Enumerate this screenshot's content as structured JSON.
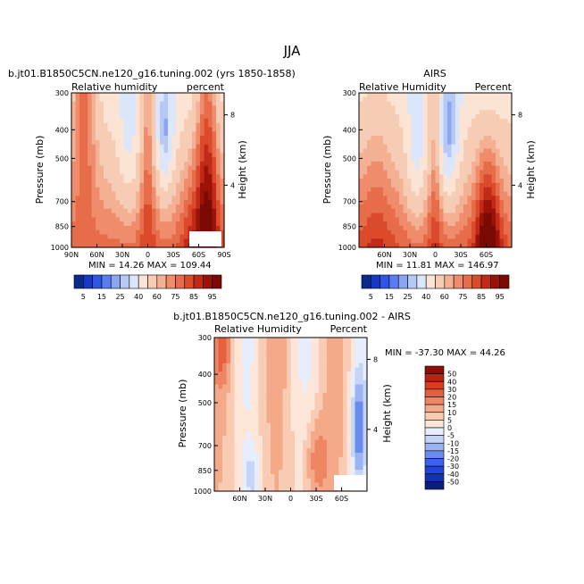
{
  "figure": {
    "title": "JJA"
  },
  "colors": {
    "rh_scale": [
      "#0a2a8c",
      "#1538c8",
      "#2f55e6",
      "#5a7cf0",
      "#8aa6f2",
      "#b6c9f5",
      "#dbe6fb",
      "#fbe4d4",
      "#f7ccb4",
      "#f3b093",
      "#ee8c6b",
      "#e76c4a",
      "#dc4a2c",
      "#c22a18",
      "#9a1208",
      "#7a0a04"
    ],
    "diff_scale": [
      "#0a1f7a",
      "#1430b4",
      "#2244dc",
      "#3a62ea",
      "#6a8cef",
      "#9bb3f3",
      "#c6d4f8",
      "#e6edfc",
      "#fde6d8",
      "#f9cbb2",
      "#f4a988",
      "#ee8663",
      "#e6603f",
      "#d83d22",
      "#b92212",
      "#8c0e06"
    ]
  },
  "chart_data": [
    {
      "type": "heatmap",
      "id": "model",
      "title_left": "b.jt01.B1850C5CN.ne120_g16.tuning.002 (yrs 1850-1858)",
      "subtitle_left": "Relative humidity",
      "subtitle_right": "percent",
      "ylabel": "Pressure (mb)",
      "ylabel_right": "Height (km)",
      "pressure_ticks": [
        "300",
        "400",
        "500",
        "700",
        "850",
        "1000"
      ],
      "height_ticks": [
        "8",
        "4"
      ],
      "lat_ticks": [
        "90N",
        "60N",
        "30N",
        "0",
        "30S",
        "60S",
        "90S"
      ],
      "stats": "MIN =   14.26   MAX = 109.44",
      "xlim": [
        90,
        -90
      ],
      "ylim": [
        1000,
        300
      ]
    },
    {
      "type": "heatmap",
      "id": "airs",
      "title_center": "AIRS",
      "subtitle_left": "Relative Humidity",
      "subtitle_right": "Percent",
      "ylabel": "Pressure (mb)",
      "ylabel_right": "Height (km)",
      "pressure_ticks": [
        "300",
        "400",
        "500",
        "700",
        "850",
        "1000"
      ],
      "height_ticks": [
        "8",
        "4"
      ],
      "lat_ticks": [
        "60N",
        "30N",
        "0",
        "30S",
        "60S"
      ],
      "stats": "MIN =   11.81   MAX = 146.97",
      "xlim": [
        90,
        -90
      ],
      "ylim": [
        1000,
        300
      ]
    },
    {
      "type": "heatmap",
      "id": "diff",
      "title_center": "b.jt01.B1850C5CN.ne120_g16.tuning.002 - AIRS",
      "subtitle_left": "Relative Humidity",
      "subtitle_right": "Percent",
      "ylabel": "Pressure (mb)",
      "ylabel_right": "Height (km)",
      "pressure_ticks": [
        "300",
        "400",
        "500",
        "700",
        "850",
        "1000"
      ],
      "height_ticks": [
        "8",
        "4"
      ],
      "lat_ticks": [
        "60N",
        "30N",
        "0",
        "30S",
        "60S"
      ],
      "stats": "MIN = -37.30   MAX =  44.26",
      "xlim": [
        90,
        -90
      ],
      "ylim": [
        1000,
        300
      ]
    }
  ],
  "legends": {
    "rh": {
      "labels": [
        "5",
        "15",
        "25",
        "40",
        "60",
        "75",
        "85",
        "95"
      ]
    },
    "diff": {
      "labels": [
        "50",
        "40",
        "30",
        "20",
        "15",
        "10",
        "5",
        "0",
        "-5",
        "-10",
        "-15",
        "-20",
        "-30",
        "-40",
        "-50"
      ]
    }
  }
}
